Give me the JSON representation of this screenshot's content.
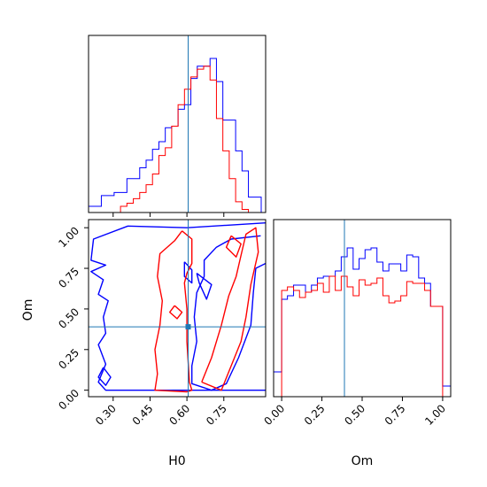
{
  "chart_data": {
    "type": "corner",
    "parameters": [
      "H0",
      "Om"
    ],
    "truth": {
      "H0": 0.605,
      "Om": 0.39
    },
    "colors": {
      "series_a": "#0000ff",
      "series_b": "#ff0000",
      "truth": "#1f77b4"
    },
    "panels": {
      "hist_H0": {
        "xlim": [
          0.2,
          0.92
        ],
        "xticks": [
          0.3,
          0.45,
          0.6,
          0.75
        ],
        "bin_edges": [
          0.2,
          0.226,
          0.252,
          0.278,
          0.304,
          0.33,
          0.356,
          0.382,
          0.408,
          0.434,
          0.46,
          0.486,
          0.512,
          0.538,
          0.564,
          0.59,
          0.616,
          0.642,
          0.668,
          0.694,
          0.72,
          0.746,
          0.772,
          0.798,
          0.824,
          0.85,
          0.876,
          0.902
        ],
        "series_a": [
          0.04,
          0.04,
          0.11,
          0.11,
          0.13,
          0.13,
          0.22,
          0.22,
          0.29,
          0.34,
          0.41,
          0.46,
          0.55,
          0.56,
          0.67,
          0.7,
          0.87,
          0.95,
          0.95,
          1.0,
          0.85,
          0.6,
          0.6,
          0.4,
          0.27,
          0.1,
          0.1
        ],
        "series_b": [
          0.0,
          0.0,
          0.0,
          0.0,
          0.0,
          0.04,
          0.06,
          0.09,
          0.13,
          0.18,
          0.25,
          0.37,
          0.42,
          0.56,
          0.7,
          0.8,
          0.88,
          0.93,
          0.95,
          0.86,
          0.61,
          0.4,
          0.22,
          0.07,
          0.02,
          0.0,
          0.0
        ]
      },
      "hist_Om": {
        "xlim": [
          -0.05,
          1.05
        ],
        "xticks": [
          0.0,
          0.25,
          0.5,
          0.75,
          1.0
        ],
        "tick_labels": [
          "0.00",
          "0.25",
          "0.50",
          "0.75",
          "1.00"
        ],
        "bin_edges": [
          -0.05,
          0.0,
          0.036,
          0.074,
          0.111,
          0.148,
          0.185,
          0.222,
          0.259,
          0.296,
          0.333,
          0.37,
          0.407,
          0.444,
          0.481,
          0.518,
          0.555,
          0.592,
          0.629,
          0.666,
          0.703,
          0.74,
          0.777,
          0.814,
          0.851,
          0.888,
          0.925,
          0.962,
          1.0,
          1.05
        ],
        "series_a": [
          0.14,
          0.55,
          0.57,
          0.63,
          0.63,
          0.59,
          0.63,
          0.67,
          0.68,
          0.68,
          0.71,
          0.79,
          0.84,
          0.72,
          0.78,
          0.83,
          0.84,
          0.76,
          0.71,
          0.75,
          0.75,
          0.71,
          0.8,
          0.79,
          0.67,
          0.64,
          0.51,
          0.51,
          0.06
        ],
        "series_b": [
          0.0,
          0.6,
          0.62,
          0.6,
          0.56,
          0.59,
          0.6,
          0.64,
          0.59,
          0.68,
          0.6,
          0.68,
          0.62,
          0.57,
          0.66,
          0.63,
          0.64,
          0.67,
          0.57,
          0.53,
          0.54,
          0.57,
          0.65,
          0.64,
          0.64,
          0.6,
          0.51,
          0.51,
          0.0
        ]
      },
      "contour_Om_vs_H0": {
        "xlim": [
          0.2,
          0.92
        ],
        "ylim": [
          -0.04,
          1.05
        ],
        "xticks": [
          0.3,
          0.45,
          0.6,
          0.75
        ],
        "yticks": [
          0.0,
          0.25,
          0.5,
          0.75,
          1.0
        ],
        "tick_labels_x": [
          "0.30",
          "0.45",
          "0.60",
          "0.75"
        ],
        "tick_labels_y": [
          "0.00",
          "0.25",
          "0.50",
          "0.75",
          "1.00"
        ],
        "series_a_contours": [
          [
            [
              0.92,
              1.03
            ],
            [
              0.6,
              1.0
            ],
            [
              0.36,
              1.01
            ],
            [
              0.22,
              0.93
            ],
            [
              0.21,
              0.8
            ],
            [
              0.27,
              0.77
            ],
            [
              0.21,
              0.73
            ],
            [
              0.26,
              0.68
            ],
            [
              0.24,
              0.59
            ],
            [
              0.28,
              0.55
            ],
            [
              0.26,
              0.45
            ],
            [
              0.27,
              0.35
            ],
            [
              0.24,
              0.28
            ],
            [
              0.27,
              0.16
            ],
            [
              0.24,
              0.05
            ],
            [
              0.27,
              0.0
            ],
            [
              0.44,
              0.0
            ],
            [
              0.6,
              0.0
            ],
            [
              0.75,
              0.0
            ],
            [
              0.92,
              0.0
            ]
          ],
          [
            [
              0.9,
              0.95
            ],
            [
              0.78,
              0.93
            ],
            [
              0.72,
              0.88
            ],
            [
              0.67,
              0.8
            ],
            [
              0.67,
              0.7
            ],
            [
              0.64,
              0.6
            ],
            [
              0.63,
              0.45
            ],
            [
              0.64,
              0.3
            ],
            [
              0.62,
              0.15
            ],
            [
              0.62,
              0.04
            ],
            [
              0.7,
              0.0
            ],
            [
              0.76,
              0.04
            ],
            [
              0.81,
              0.2
            ],
            [
              0.86,
              0.4
            ],
            [
              0.87,
              0.6
            ],
            [
              0.88,
              0.75
            ],
            [
              0.92,
              0.78
            ]
          ],
          [
            [
              0.59,
              0.79
            ],
            [
              0.62,
              0.74
            ],
            [
              0.62,
              0.66
            ],
            [
              0.59,
              0.7
            ],
            [
              0.59,
              0.79
            ]
          ],
          [
            [
              0.64,
              0.72
            ],
            [
              0.7,
              0.65
            ],
            [
              0.68,
              0.56
            ],
            [
              0.65,
              0.66
            ],
            [
              0.64,
              0.72
            ]
          ],
          [
            [
              0.26,
              0.14
            ],
            [
              0.29,
              0.08
            ],
            [
              0.27,
              0.03
            ],
            [
              0.24,
              0.08
            ],
            [
              0.26,
              0.14
            ]
          ]
        ],
        "series_b_contours": [
          [
            [
              0.58,
              0.98
            ],
            [
              0.55,
              0.92
            ],
            [
              0.49,
              0.84
            ],
            [
              0.48,
              0.7
            ],
            [
              0.5,
              0.55
            ],
            [
              0.49,
              0.4
            ],
            [
              0.47,
              0.25
            ],
            [
              0.48,
              0.1
            ],
            [
              0.47,
              0.0
            ],
            [
              0.6,
              -0.01
            ],
            [
              0.62,
              0.0
            ],
            [
              0.61,
              0.05
            ],
            [
              0.6,
              0.3
            ],
            [
              0.6,
              0.5
            ],
            [
              0.59,
              0.66
            ],
            [
              0.6,
              0.72
            ],
            [
              0.62,
              0.78
            ],
            [
              0.62,
              0.93
            ],
            [
              0.58,
              0.98
            ]
          ],
          [
            [
              0.66,
              0.05
            ],
            [
              0.7,
              0.2
            ],
            [
              0.74,
              0.4
            ],
            [
              0.77,
              0.58
            ],
            [
              0.8,
              0.7
            ],
            [
              0.82,
              0.83
            ],
            [
              0.84,
              0.96
            ],
            [
              0.88,
              1.0
            ],
            [
              0.89,
              0.85
            ],
            [
              0.86,
              0.65
            ],
            [
              0.84,
              0.45
            ],
            [
              0.82,
              0.3
            ],
            [
              0.78,
              0.15
            ],
            [
              0.74,
              0.0
            ],
            [
              0.66,
              0.05
            ]
          ],
          [
            [
              0.78,
              0.95
            ],
            [
              0.82,
              0.9
            ],
            [
              0.8,
              0.82
            ],
            [
              0.76,
              0.88
            ],
            [
              0.78,
              0.95
            ]
          ],
          [
            [
              0.55,
              0.52
            ],
            [
              0.58,
              0.48
            ],
            [
              0.56,
              0.44
            ],
            [
              0.53,
              0.48
            ],
            [
              0.55,
              0.52
            ]
          ]
        ]
      }
    },
    "xlabels": [
      "H0",
      "Om"
    ],
    "ylabel": "Om",
    "grid": false,
    "legend": "none"
  }
}
